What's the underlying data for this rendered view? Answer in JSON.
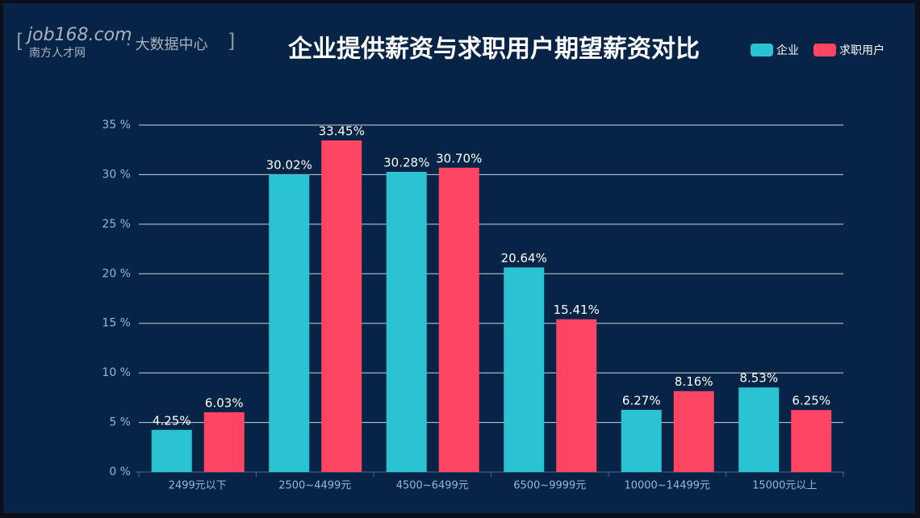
{
  "chart_data": {
    "type": "bar",
    "title": "企业提供薪资与求职用户期望薪资对比",
    "logo": {
      "open": "[",
      "brand": "job168.com",
      "name": "南方人才网",
      "suffix": "· 大数据中心",
      "close": "]"
    },
    "categories": [
      "2499元以下",
      "2500~4499元",
      "4500~6499元",
      "6500~9999元",
      "10000~14499元",
      "15000元以上"
    ],
    "series": [
      {
        "name": "企业",
        "color": "#29c3d1",
        "values": [
          4.25,
          30.02,
          30.28,
          20.64,
          6.27,
          8.53
        ],
        "value_labels": [
          "4.25%",
          "30.02%",
          "30.28%",
          "20.64%",
          "6.27%",
          "8.53%"
        ]
      },
      {
        "name": "求职用户",
        "color": "#ff4563",
        "values": [
          6.03,
          33.45,
          30.7,
          15.41,
          8.16,
          6.25
        ],
        "value_labels": [
          "6.03%",
          "33.45%",
          "30.70%",
          "15.41%",
          "8.16%",
          "6.25%"
        ]
      }
    ],
    "ylim": [
      0,
      35
    ],
    "yticks": [
      {
        "value": 0,
        "label": "0 %"
      },
      {
        "value": 5,
        "label": "5 %"
      },
      {
        "value": 10,
        "label": "10 %"
      },
      {
        "value": 15,
        "label": "15 %"
      },
      {
        "value": 20,
        "label": "20 %"
      },
      {
        "value": 25,
        "label": "25 %"
      },
      {
        "value": 30,
        "label": "30 %"
      },
      {
        "value": 35,
        "label": "35 %"
      }
    ],
    "grid": true,
    "legend": "top-right"
  }
}
